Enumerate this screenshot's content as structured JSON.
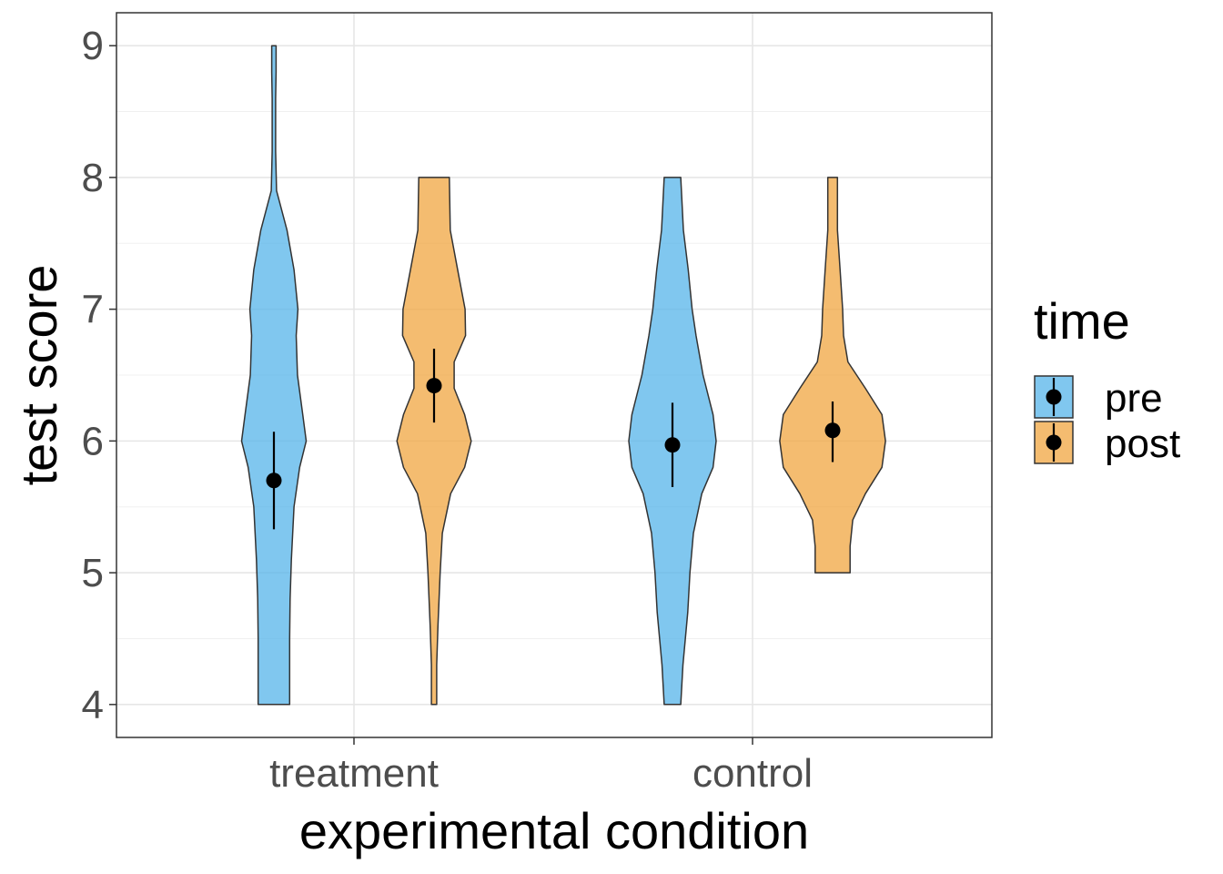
{
  "chart_data": {
    "type": "violin",
    "xlabel": "experimental condition",
    "ylabel": "test score",
    "categories": [
      "treatment",
      "control"
    ],
    "ylim": [
      3.75,
      9.25
    ],
    "yticks": [
      4,
      5,
      6,
      7,
      8,
      9
    ],
    "grid": true,
    "legend": {
      "title": "time",
      "position": "right",
      "entries": [
        {
          "label": "pre",
          "color": "#56B4E9"
        },
        {
          "label": "post",
          "color": "#F0A540"
        }
      ]
    },
    "fill_alpha": 0.75,
    "series": [
      {
        "name": "pre",
        "color": "#56B4E9",
        "values_summary": [
          {
            "category": "treatment",
            "mean": 5.7,
            "ci": [
              5.33,
              6.07
            ],
            "min": 4,
            "max": 9,
            "density": [
              [
                4.0,
                0.36
              ],
              [
                4.5,
                0.36
              ],
              [
                4.8,
                0.37
              ],
              [
                5.1,
                0.4
              ],
              [
                5.5,
                0.46
              ],
              [
                5.8,
                0.59
              ],
              [
                6.0,
                0.74
              ],
              [
                6.2,
                0.66
              ],
              [
                6.5,
                0.54
              ],
              [
                6.8,
                0.51
              ],
              [
                7.0,
                0.55
              ],
              [
                7.3,
                0.46
              ],
              [
                7.6,
                0.3
              ],
              [
                7.9,
                0.06
              ],
              [
                8.2,
                0.04
              ],
              [
                8.6,
                0.04
              ],
              [
                8.8,
                0.05
              ],
              [
                9.0,
                0.05
              ]
            ]
          },
          {
            "category": "control",
            "mean": 5.97,
            "ci": [
              5.65,
              6.29
            ],
            "min": 4,
            "max": 8,
            "density": [
              [
                4.0,
                0.19
              ],
              [
                4.3,
                0.24
              ],
              [
                4.7,
                0.35
              ],
              [
                5.0,
                0.4
              ],
              [
                5.3,
                0.48
              ],
              [
                5.6,
                0.67
              ],
              [
                5.8,
                0.93
              ],
              [
                6.0,
                1.0
              ],
              [
                6.2,
                0.93
              ],
              [
                6.5,
                0.7
              ],
              [
                6.8,
                0.54
              ],
              [
                7.0,
                0.45
              ],
              [
                7.3,
                0.36
              ],
              [
                7.6,
                0.25
              ],
              [
                8.0,
                0.19
              ]
            ]
          }
        ]
      },
      {
        "name": "post",
        "color": "#F0A540",
        "values_summary": [
          {
            "category": "treatment",
            "mean": 6.42,
            "ci": [
              6.14,
              6.7
            ],
            "min": 4,
            "max": 8,
            "density": [
              [
                4.0,
                0.06
              ],
              [
                4.3,
                0.06
              ],
              [
                4.6,
                0.09
              ],
              [
                5.0,
                0.14
              ],
              [
                5.3,
                0.19
              ],
              [
                5.6,
                0.38
              ],
              [
                5.8,
                0.7
              ],
              [
                6.0,
                0.85
              ],
              [
                6.2,
                0.7
              ],
              [
                6.4,
                0.46
              ],
              [
                6.6,
                0.46
              ],
              [
                6.8,
                0.72
              ],
              [
                7.0,
                0.71
              ],
              [
                7.3,
                0.54
              ],
              [
                7.6,
                0.37
              ],
              [
                8.0,
                0.35
              ]
            ]
          },
          {
            "category": "control",
            "mean": 6.08,
            "ci": [
              5.84,
              6.3
            ],
            "min": 5,
            "max": 8,
            "density": [
              [
                5.0,
                0.4
              ],
              [
                5.2,
                0.4
              ],
              [
                5.4,
                0.46
              ],
              [
                5.6,
                0.75
              ],
              [
                5.8,
                1.13
              ],
              [
                6.0,
                1.21
              ],
              [
                6.2,
                1.13
              ],
              [
                6.4,
                0.75
              ],
              [
                6.6,
                0.35
              ],
              [
                6.8,
                0.25
              ],
              [
                7.0,
                0.23
              ],
              [
                7.3,
                0.17
              ],
              [
                7.6,
                0.11
              ],
              [
                8.0,
                0.11
              ]
            ]
          }
        ]
      }
    ]
  }
}
